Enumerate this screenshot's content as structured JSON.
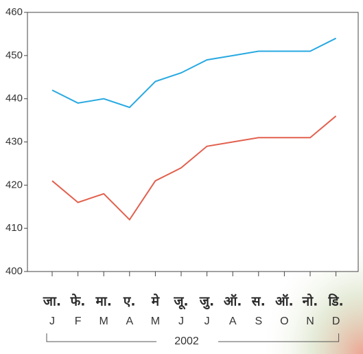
{
  "chart_data": {
    "type": "line",
    "categories": [
      "जा.",
      "फे.",
      "मा.",
      "ए.",
      "मे",
      "जू.",
      "जु.",
      "ऑ.",
      "स.",
      "ऑ.",
      "नो.",
      "डि."
    ],
    "categories_secondary": [
      "J",
      "F",
      "M",
      "A",
      "M",
      "J",
      "J",
      "A",
      "S",
      "O",
      "N",
      "D"
    ],
    "x_group_label": "2002",
    "series": [
      {
        "color": "#27a9e1",
        "values": [
          442,
          439,
          440,
          438,
          444,
          446,
          449,
          450,
          451,
          451,
          451,
          454
        ]
      },
      {
        "color": "#e2604e",
        "values": [
          421,
          416,
          418,
          412,
          421,
          424,
          429,
          430,
          431,
          431,
          431,
          436
        ]
      }
    ],
    "ylim": [
      400,
      460
    ],
    "yticks": [
      400,
      410,
      420,
      430,
      440,
      450,
      460
    ],
    "grid": false
  }
}
